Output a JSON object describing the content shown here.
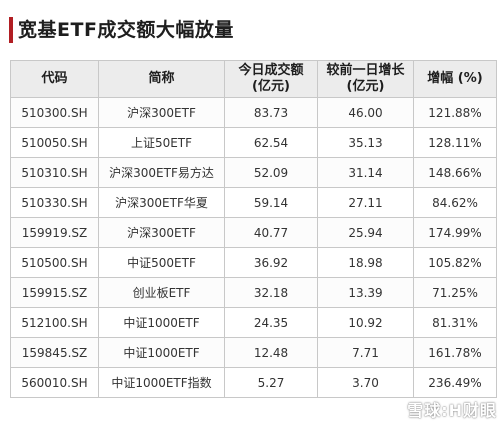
{
  "title": "宽基ETF成交额大幅放量",
  "accent_color": "#b11e23",
  "headers": {
    "code": "代码",
    "name": "简称",
    "volume_line1": "今日成交额",
    "volume_line2": "(亿元)",
    "increase_line1": "较前一日增长",
    "increase_line2": "(亿元)",
    "pct": "增幅 (%)"
  },
  "rows": [
    {
      "code": "510300.SH",
      "name": "沪深300ETF",
      "volume": "83.73",
      "increase": "46.00",
      "pct": "121.88%"
    },
    {
      "code": "510050.SH",
      "name": "上证50ETF",
      "volume": "62.54",
      "increase": "35.13",
      "pct": "128.11%"
    },
    {
      "code": "510310.SH",
      "name": "沪深300ETF易方达",
      "volume": "52.09",
      "increase": "31.14",
      "pct": "148.66%"
    },
    {
      "code": "510330.SH",
      "name": "沪深300ETF华夏",
      "volume": "59.14",
      "increase": "27.11",
      "pct": "84.62%"
    },
    {
      "code": "159919.SZ",
      "name": "沪深300ETF",
      "volume": "40.77",
      "increase": "25.94",
      "pct": "174.99%"
    },
    {
      "code": "510500.SH",
      "name": "中证500ETF",
      "volume": "36.92",
      "increase": "18.98",
      "pct": "105.82%"
    },
    {
      "code": "159915.SZ",
      "name": "创业板ETF",
      "volume": "32.18",
      "increase": "13.39",
      "pct": "71.25%"
    },
    {
      "code": "512100.SH",
      "name": "中证1000ETF",
      "volume": "24.35",
      "increase": "10.92",
      "pct": "81.31%"
    },
    {
      "code": "159845.SZ",
      "name": "中证1000ETF",
      "volume": "12.48",
      "increase": "7.71",
      "pct": "161.78%"
    },
    {
      "code": "560010.SH",
      "name": "中证1000ETF指数",
      "volume": "5.27",
      "increase": "3.70",
      "pct": "236.49%"
    }
  ],
  "watermark": "雪球:H财眼"
}
